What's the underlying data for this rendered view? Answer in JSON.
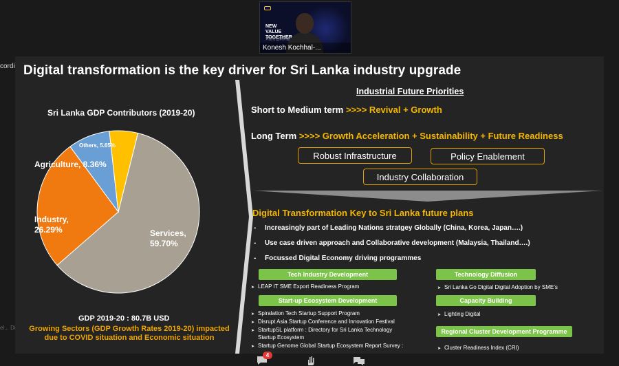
{
  "meeting": {
    "participant_name": "Konesh Kochhal-...",
    "video_tag": "NEW VALUE TOGETHER",
    "video_subtag": "共创行业新价值",
    "recording_label": "cording",
    "ghost_text": "el... Di",
    "reactions_badge": "4"
  },
  "slide": {
    "title": "Digital transformation is the key driver for Sri Lanka industry upgrade",
    "left": {
      "gdp_title": "Sri Lanka GDP Contributors (2019-20)",
      "gdp_total": "GDP 2019-20 : 80.7B USD",
      "growing_line1": "Growing Sectors (GDP Growth Rates 2019-20) impacted",
      "growing_line2": "due to COVID situation and Economic situation"
    },
    "right": {
      "ifp_title": "Industrial Future Priorities",
      "short_term_label": "Short to Medium term ",
      "short_term_value": ">>>> Revival + Growth",
      "long_term_label": "Long Term ",
      "long_term_value": ">>>> Growth Acceleration + Sustainability + Future Readiness",
      "pills": [
        "Robust Infrastructure",
        "Policy Enablement",
        "Industry Collaboration"
      ],
      "dt_title": "Digital Transformation Key to Sri Lanka future plans",
      "bullets": [
        "Increasingly part of Leading Nations stratgey Globally (China, Korea, Japan….)",
        "Use case driven approach and Collaborative development (Malaysia, Thailand….)",
        "Focussed Digital Economy driving programmes"
      ],
      "programs": {
        "tech_industry": {
          "label": "Tech Industry Development",
          "items": [
            "LEAP IT SME Export Readiness Program"
          ]
        },
        "startup": {
          "label": "Start-up Ecosystem Development",
          "items": [
            "Spiralation Tech Startup Support Program",
            "Disrupt Asia Startup Conference and Innovation Festival",
            "StartupSL platform : Directory for Sri Lanka Technology",
            "Startup Ecosystem",
            "Startup Genome Global Startup Ecosystem Report Survey :"
          ]
        },
        "tech_diffusion": {
          "label": "Technology Diffusion",
          "items": [
            "Sri Lanka Go Digital Digital Adoption by SME’s"
          ]
        },
        "capacity": {
          "label": "Capacity Building",
          "items": [
            "Lighting Digital"
          ]
        },
        "regional": {
          "label": "Regional Cluster Development Programme",
          "items": [
            "Cluster Readiness Index (CRI)"
          ]
        }
      }
    }
  },
  "chart_data": {
    "type": "pie",
    "title": "Sri Lanka GDP Contributors (2019-20)",
    "slices": [
      {
        "name": "Services",
        "value": 59.7,
        "label": "Services,\n59.70%",
        "color": "#a8a193"
      },
      {
        "name": "Industry",
        "value": 26.29,
        "label": "Industry,\n26.29%",
        "color": "#f07a10"
      },
      {
        "name": "Agriculture",
        "value": 8.36,
        "label": "Agriculture, 8.36%",
        "color": "#6a9fd6"
      },
      {
        "name": "Others",
        "value": 5.65,
        "label": "Others, 5.65%",
        "color": "#ffc000"
      }
    ]
  },
  "icons": [
    "chat-icon",
    "raise-hand-icon",
    "reactions-icon"
  ]
}
